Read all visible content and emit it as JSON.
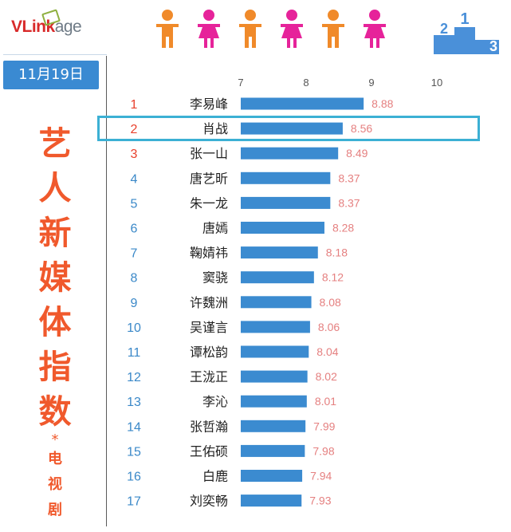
{
  "logo": {
    "brand_prefix": "VLink",
    "brand_suffix": "age"
  },
  "date_badge": "11月19日",
  "title": {
    "main_chars": [
      "艺",
      "人",
      "新",
      "媒",
      "体",
      "指",
      "数"
    ],
    "star": "*",
    "sub_chars": [
      "电",
      "视",
      "剧"
    ]
  },
  "podium_labels": [
    "2",
    "1",
    "3"
  ],
  "colors": {
    "bar": "#3b8bd0",
    "value_text": "#e58080",
    "rank_red": "#e8402c",
    "rank_blue": "#3a88c8",
    "title": "#f0592c",
    "highlight_border": "#3cb0d4",
    "male_icon": "#f08a2a",
    "female_icon": "#e6239a"
  },
  "icons": [
    "person-male-icon",
    "person-female-icon",
    "person-male-icon",
    "person-female-icon",
    "person-male-icon",
    "person-female-icon"
  ],
  "chart_data": {
    "type": "bar",
    "orientation": "horizontal",
    "xlim": [
      7,
      10
    ],
    "xticks": [
      "7",
      "8",
      "9",
      "10"
    ],
    "highlighted_rank": 2,
    "rows": [
      {
        "rank": "1",
        "name": "李易峰",
        "value": 8.88,
        "label": "8.88"
      },
      {
        "rank": "2",
        "name": "肖战",
        "value": 8.56,
        "label": "8.56"
      },
      {
        "rank": "3",
        "name": "张一山",
        "value": 8.49,
        "label": "8.49"
      },
      {
        "rank": "4",
        "name": "唐艺昕",
        "value": 8.37,
        "label": "8.37"
      },
      {
        "rank": "5",
        "name": "朱一龙",
        "value": 8.37,
        "label": "8.37"
      },
      {
        "rank": "6",
        "name": "唐嫣",
        "value": 8.28,
        "label": "8.28"
      },
      {
        "rank": "7",
        "name": "鞠婧祎",
        "value": 8.18,
        "label": "8.18"
      },
      {
        "rank": "8",
        "name": "窦骁",
        "value": 8.12,
        "label": "8.12"
      },
      {
        "rank": "9",
        "name": "许魏洲",
        "value": 8.08,
        "label": "8.08"
      },
      {
        "rank": "10",
        "name": "吴谨言",
        "value": 8.06,
        "label": "8.06"
      },
      {
        "rank": "11",
        "name": "谭松韵",
        "value": 8.04,
        "label": "8.04"
      },
      {
        "rank": "12",
        "name": "王泷正",
        "value": 8.02,
        "label": "8.02"
      },
      {
        "rank": "13",
        "name": "李沁",
        "value": 8.01,
        "label": "8.01"
      },
      {
        "rank": "14",
        "name": "张哲瀚",
        "value": 7.99,
        "label": "7.99"
      },
      {
        "rank": "15",
        "name": "王佑硕",
        "value": 7.98,
        "label": "7.98"
      },
      {
        "rank": "16",
        "name": "白鹿",
        "value": 7.94,
        "label": "7.94"
      },
      {
        "rank": "17",
        "name": "刘奕畅",
        "value": 7.93,
        "label": "7.93"
      }
    ]
  }
}
